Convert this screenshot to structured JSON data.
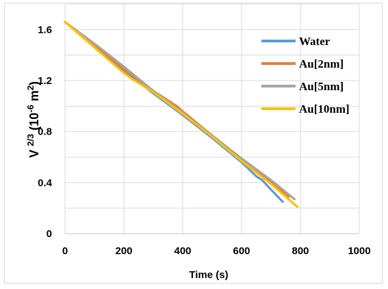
{
  "chart_data": {
    "type": "line",
    "title": "",
    "xlabel": "Time (s)",
    "ylabel_parts": [
      "V ",
      "2/3",
      " (10",
      "-6",
      " m",
      "2",
      ")"
    ],
    "xlim": [
      0,
      1000
    ],
    "ylim": [
      0,
      1.8
    ],
    "x_ticks": [
      "0",
      "200",
      "400",
      "600",
      "800",
      "1000"
    ],
    "y_ticks": [
      "0",
      "0.4",
      "0.8",
      "1.2",
      "1.6"
    ],
    "grid": true,
    "legend_position": "top-right",
    "series": [
      {
        "name": "Water",
        "color": "#5b9bd5",
        "x": [
          0,
          100,
          200,
          300,
          400,
          500,
          600,
          650,
          670,
          690,
          740
        ],
        "y": [
          1.66,
          1.47,
          1.28,
          1.1,
          0.93,
          0.75,
          0.56,
          0.45,
          0.42,
          0.37,
          0.25
        ]
      },
      {
        "name": "Au[2nm]",
        "color": "#ed7d31",
        "x": [
          0,
          100,
          200,
          300,
          380,
          400,
          500,
          600,
          700,
          760
        ],
        "y": [
          1.66,
          1.48,
          1.29,
          1.12,
          1.0,
          0.96,
          0.77,
          0.58,
          0.41,
          0.29
        ]
      },
      {
        "name": "Au[5nm]",
        "color": "#a5a5a5",
        "x": [
          0,
          100,
          200,
          300,
          400,
          500,
          600,
          700,
          780
        ],
        "y": [
          1.66,
          1.49,
          1.31,
          1.12,
          0.95,
          0.77,
          0.59,
          0.42,
          0.27
        ]
      },
      {
        "name": "Au[10nm]",
        "color": "#ffc000",
        "x": [
          0,
          100,
          200,
          230,
          300,
          400,
          500,
          600,
          700,
          790
        ],
        "y": [
          1.66,
          1.46,
          1.26,
          1.21,
          1.11,
          0.94,
          0.76,
          0.57,
          0.39,
          0.21
        ]
      }
    ]
  }
}
